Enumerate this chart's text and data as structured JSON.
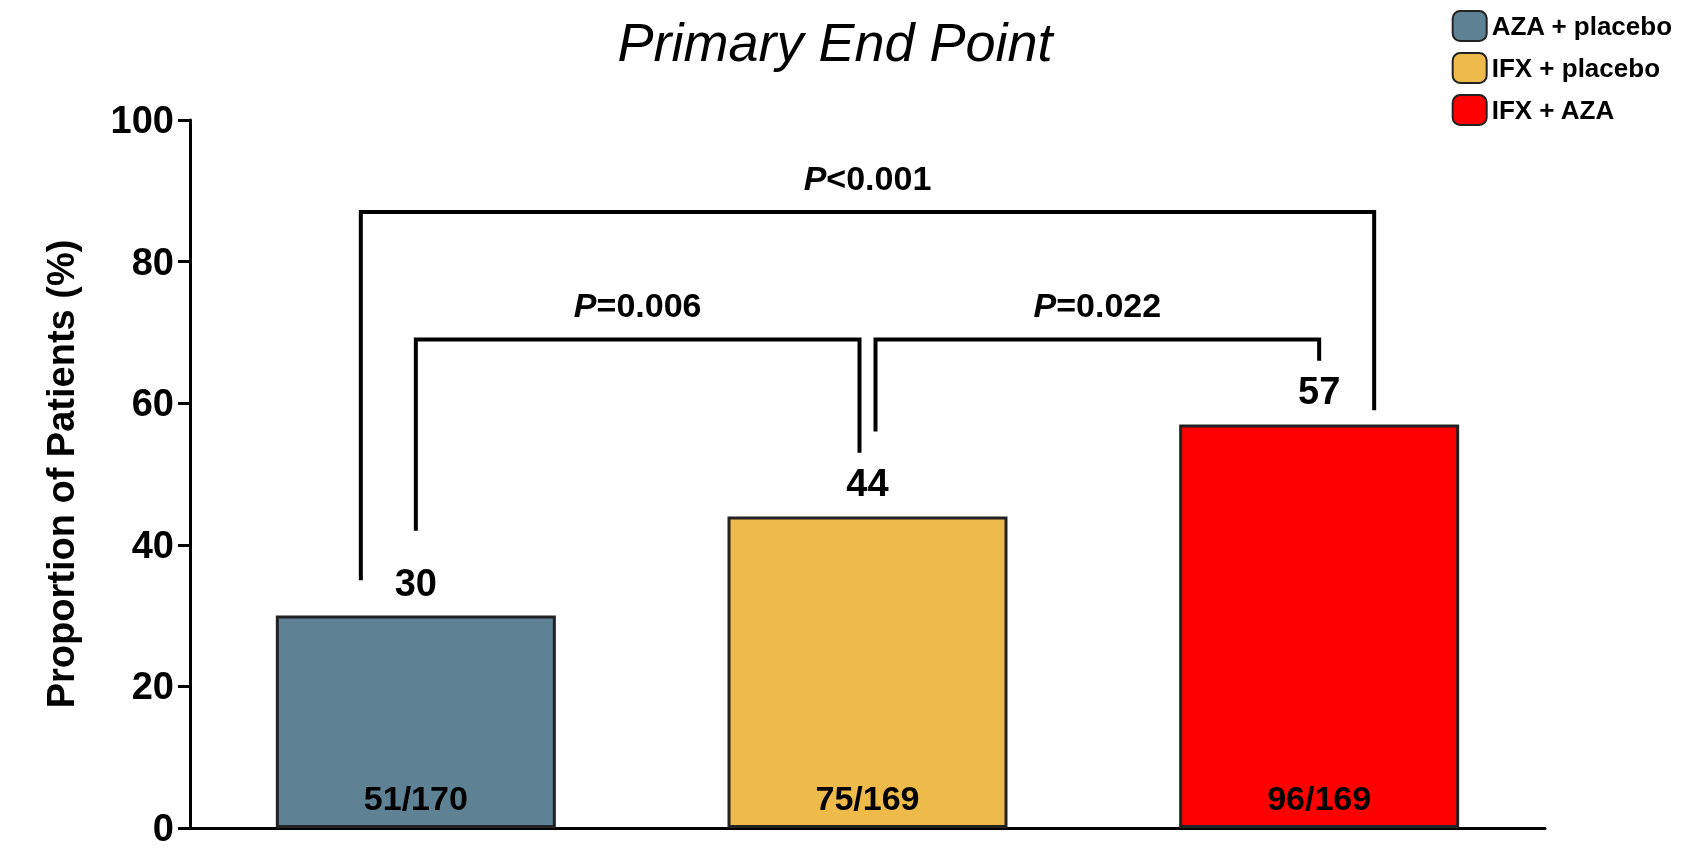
{
  "chart_data": {
    "type": "bar",
    "title": "Primary End Point",
    "ylabel": "Proportion of Patients (%)",
    "categories": [
      null,
      null,
      null
    ],
    "series": [
      {
        "name": "AZA + placebo",
        "color": "#5e8294",
        "values": [
          30,
          null,
          null
        ]
      },
      {
        "name": "IFX + placebo",
        "color": "#eebb4a",
        "values": [
          null,
          44,
          null
        ]
      },
      {
        "name": "IFX + AZA",
        "color": "#ff0000",
        "values": [
          null,
          null,
          57
        ]
      }
    ],
    "ylim": [
      0,
      100
    ],
    "yticks": [
      0,
      20,
      40,
      60,
      80,
      100
    ],
    "grid": false,
    "legend": "top right",
    "data_labels": true,
    "tick_labels": "y",
    "annotations": [
      {
        "text": "51/170",
        "y": 0
      },
      {
        "text": "75/169",
        "y": 0
      },
      {
        "text": "96/169",
        "y": 0
      },
      "P<0.001",
      "P=0.006",
      "P=0.022"
    ]
  }
}
